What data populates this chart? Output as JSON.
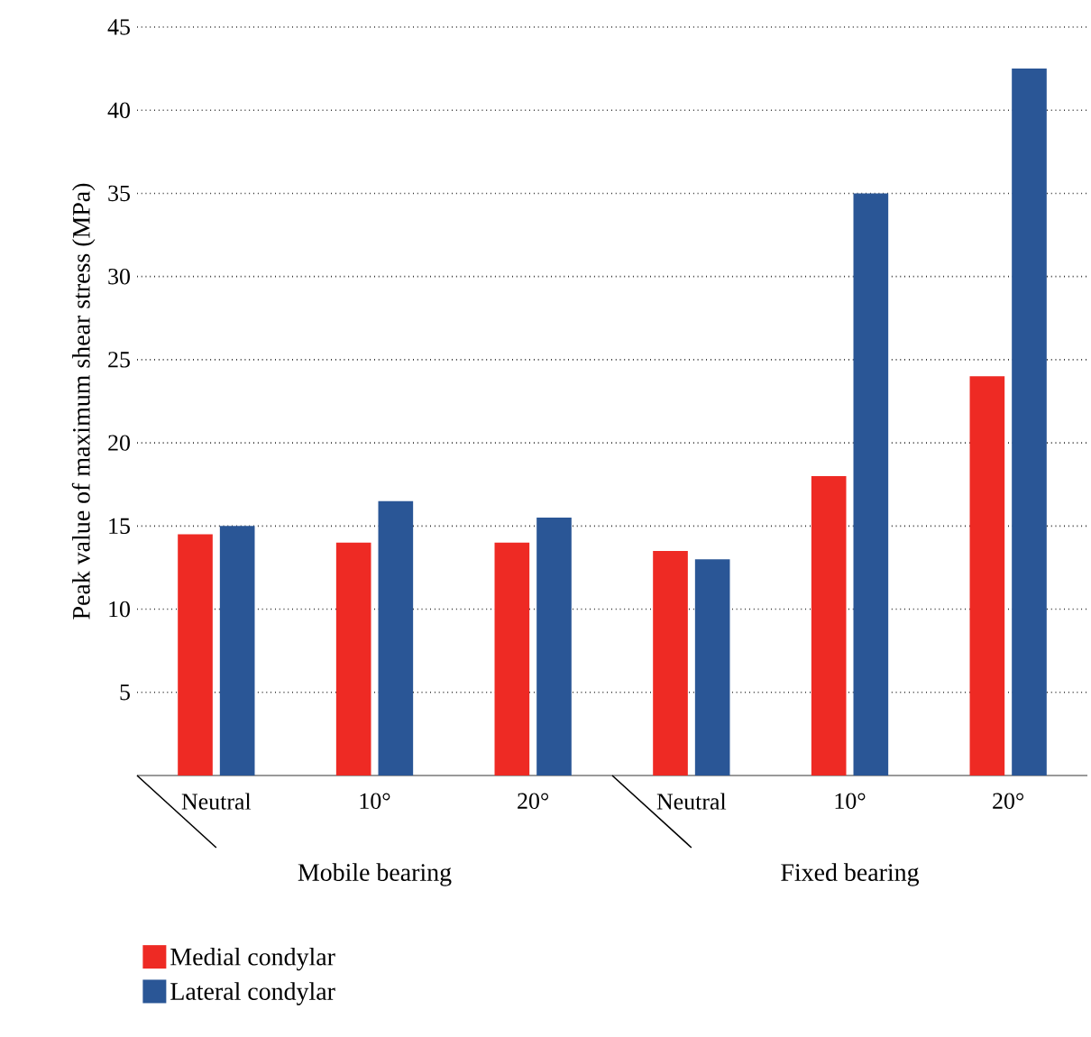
{
  "chart_data": {
    "type": "bar",
    "ylabel": "Peak value of maximum shear stress (MPa)",
    "categories": [
      "Neutral",
      "10°",
      "20°",
      "Neutral",
      "10°",
      "20°"
    ],
    "series": [
      {
        "name": "Medial condylar",
        "color": "#ee2a24",
        "values": [
          14.5,
          14,
          14,
          13.5,
          18,
          24
        ]
      },
      {
        "name": "Lateral condylar",
        "color": "#2a5696",
        "values": [
          15,
          16.5,
          15.5,
          13,
          35,
          42.5
        ]
      }
    ],
    "annotations": [
      "Mobile bearing",
      "Fixed bearing"
    ],
    "ylim": [
      0,
      45
    ],
    "yticks": [
      5,
      10,
      15,
      20,
      25,
      30,
      35,
      40,
      45
    ],
    "grid": "y",
    "legend": "bottom left"
  }
}
